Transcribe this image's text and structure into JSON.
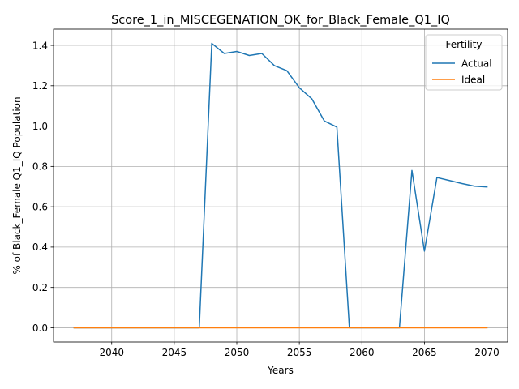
{
  "chart_data": {
    "type": "line",
    "title": "Score_1_in_MISCEGENATION_OK_for_Black_Female_Q1_IQ",
    "xlabel": "Years",
    "ylabel": "% of Black_Female Q1_IQ Population",
    "xlim": [
      2035.35,
      2071.65
    ],
    "ylim": [
      -0.0705,
      1.4805
    ],
    "xticks": [
      2040,
      2045,
      2050,
      2055,
      2060,
      2065,
      2070
    ],
    "yticks": [
      0.0,
      0.2,
      0.4,
      0.6,
      0.8,
      1.0,
      1.2,
      1.4
    ],
    "ytick_labels": [
      "0.0",
      "0.2",
      "0.4",
      "0.6",
      "0.8",
      "1.0",
      "1.2",
      "1.4"
    ],
    "grid": true,
    "legend": {
      "title": "Fertility",
      "placement": "top-right"
    },
    "x": [
      2037,
      2038,
      2039,
      2040,
      2041,
      2042,
      2043,
      2044,
      2045,
      2046,
      2047,
      2048,
      2049,
      2050,
      2051,
      2052,
      2053,
      2054,
      2055,
      2056,
      2057,
      2058,
      2059,
      2060,
      2061,
      2062,
      2063,
      2064,
      2065,
      2066,
      2067,
      2068,
      2069,
      2070
    ],
    "series": [
      {
        "name": "Actual",
        "color": "#1f77b4",
        "values": [
          0,
          0,
          0,
          0,
          0,
          0,
          0,
          0,
          0,
          0,
          0,
          1.41,
          1.36,
          1.37,
          1.35,
          1.36,
          1.3,
          1.275,
          1.19,
          1.135,
          1.025,
          0.995,
          0,
          0,
          0,
          0,
          0,
          0.78,
          0.38,
          0.745,
          0.73,
          0.715,
          0.702,
          0.698
        ]
      },
      {
        "name": "Ideal",
        "color": "#ff7f0e",
        "values": [
          0,
          0,
          0,
          0,
          0,
          0,
          0,
          0,
          0,
          0,
          0,
          0,
          0,
          0,
          0,
          0,
          0,
          0,
          0,
          0,
          0,
          0,
          0,
          0,
          0,
          0,
          0,
          0,
          0,
          0,
          0,
          0,
          0,
          0
        ]
      }
    ]
  }
}
